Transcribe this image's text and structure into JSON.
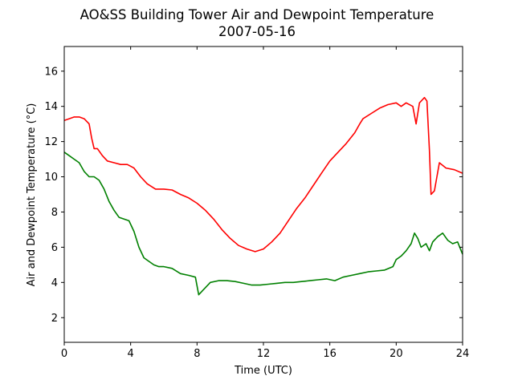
{
  "chart_data": {
    "type": "line",
    "title": "AO&SS Building Tower Air and Dewpoint Temperature",
    "subtitle": "2007-05-16",
    "xlabel": "Time (UTC)",
    "ylabel": "Air and Dewpoint Temperature (°C)",
    "xlim": [
      0,
      24
    ],
    "ylim": [
      0.6,
      17.4
    ],
    "xticks": [
      "0",
      "4",
      "8",
      "12",
      "16",
      "20",
      "24"
    ],
    "yticks": [
      "2",
      "4",
      "6",
      "8",
      "10",
      "12",
      "14",
      "16"
    ],
    "grid": false,
    "series": [
      {
        "color": "#ff0000",
        "x": [
          0,
          0.3,
          0.6,
          0.9,
          1.2,
          1.5,
          1.65,
          1.8,
          2.0,
          2.3,
          2.6,
          3.0,
          3.4,
          3.8,
          4.2,
          4.6,
          5.0,
          5.5,
          6.0,
          6.5,
          7.0,
          7.5,
          8.0,
          8.5,
          9.0,
          9.5,
          10.0,
          10.5,
          11.0,
          11.5,
          12.0,
          12.5,
          13.0,
          13.5,
          14.0,
          14.5,
          15.0,
          15.5,
          16.0,
          16.5,
          17.0,
          17.5,
          17.8,
          18.0,
          18.5,
          19.0,
          19.5,
          20.0,
          20.3,
          20.6,
          21.0,
          21.2,
          21.4,
          21.7,
          21.85,
          22.0,
          22.1,
          22.3,
          22.6,
          23.0,
          23.5,
          24.0
        ],
        "y": [
          13.2,
          13.3,
          13.4,
          13.4,
          13.3,
          13.0,
          12.2,
          11.6,
          11.6,
          11.2,
          10.9,
          10.8,
          10.7,
          10.7,
          10.5,
          10.0,
          9.6,
          9.3,
          9.3,
          9.25,
          9.0,
          8.8,
          8.5,
          8.1,
          7.6,
          7.0,
          6.5,
          6.1,
          5.9,
          5.75,
          5.9,
          6.3,
          6.8,
          7.5,
          8.2,
          8.8,
          9.5,
          10.2,
          10.9,
          11.4,
          11.9,
          12.5,
          13.0,
          13.3,
          13.6,
          13.9,
          14.1,
          14.2,
          14.0,
          14.2,
          14.0,
          13.0,
          14.2,
          14.5,
          14.3,
          11.5,
          9.0,
          9.2,
          10.8,
          10.5,
          10.4,
          10.2
        ]
      },
      {
        "color": "#008000",
        "x": [
          0,
          0.3,
          0.6,
          0.9,
          1.2,
          1.5,
          1.8,
          2.1,
          2.4,
          2.7,
          3.0,
          3.3,
          3.6,
          3.9,
          4.2,
          4.5,
          4.8,
          5.1,
          5.4,
          5.7,
          6.0,
          6.5,
          7.0,
          7.5,
          7.9,
          8.1,
          8.4,
          8.8,
          9.3,
          9.8,
          10.3,
          10.8,
          11.3,
          11.8,
          12.3,
          12.8,
          13.3,
          13.8,
          14.3,
          14.8,
          15.3,
          15.8,
          16.3,
          16.8,
          17.3,
          17.8,
          18.3,
          18.8,
          19.3,
          19.8,
          20.0,
          20.3,
          20.6,
          20.9,
          21.1,
          21.3,
          21.5,
          21.8,
          22.0,
          22.2,
          22.5,
          22.8,
          23.1,
          23.4,
          23.7,
          24.0
        ],
        "y": [
          11.4,
          11.2,
          11.0,
          10.8,
          10.3,
          10.0,
          10.0,
          9.8,
          9.3,
          8.6,
          8.1,
          7.7,
          7.6,
          7.5,
          6.9,
          6.0,
          5.4,
          5.2,
          5.0,
          4.9,
          4.9,
          4.8,
          4.5,
          4.4,
          4.3,
          3.3,
          3.6,
          4.0,
          4.1,
          4.1,
          4.05,
          3.95,
          3.85,
          3.85,
          3.9,
          3.95,
          4.0,
          4.0,
          4.05,
          4.1,
          4.15,
          4.2,
          4.1,
          4.3,
          4.4,
          4.5,
          4.6,
          4.65,
          4.7,
          4.9,
          5.3,
          5.5,
          5.8,
          6.2,
          6.8,
          6.5,
          6.0,
          6.2,
          5.8,
          6.3,
          6.6,
          6.8,
          6.4,
          6.2,
          6.3,
          5.6
        ]
      }
    ]
  }
}
